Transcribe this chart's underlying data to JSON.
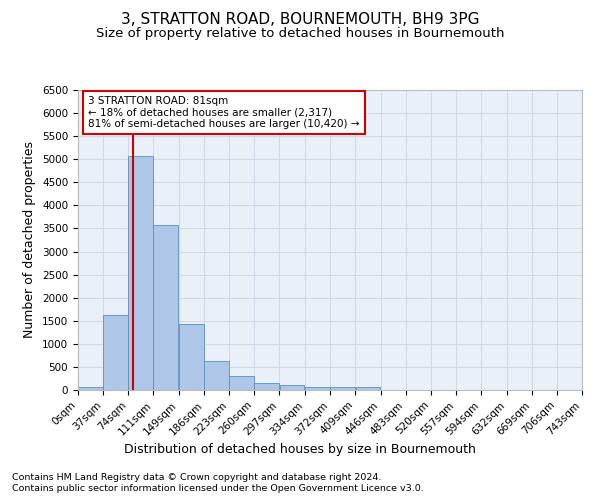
{
  "title": "3, STRATTON ROAD, BOURNEMOUTH, BH9 3PG",
  "subtitle": "Size of property relative to detached houses in Bournemouth",
  "xlabel": "Distribution of detached houses by size in Bournemouth",
  "ylabel": "Number of detached properties",
  "footnote1": "Contains HM Land Registry data © Crown copyright and database right 2024.",
  "footnote2": "Contains public sector information licensed under the Open Government Licence v3.0.",
  "bin_edges": [
    0,
    37,
    74,
    111,
    149,
    186,
    223,
    260,
    297,
    334,
    372,
    409,
    446,
    483,
    520,
    557,
    594,
    632,
    669,
    706,
    743
  ],
  "bar_heights": [
    75,
    1625,
    5075,
    3575,
    1425,
    625,
    300,
    150,
    100,
    75,
    75,
    75,
    0,
    0,
    0,
    0,
    0,
    0,
    0,
    0
  ],
  "bar_color": "#aec6e8",
  "bar_edge_color": "#5a8fc2",
  "property_x": 81,
  "property_label": "3 STRATTON ROAD: 81sqm",
  "annotation_line1": "← 18% of detached houses are smaller (2,317)",
  "annotation_line2": "81% of semi-detached houses are larger (10,420) →",
  "annotation_box_color": "#ffffff",
  "annotation_box_edge": "#cc0000",
  "vline_color": "#cc0000",
  "ylim": [
    0,
    6500
  ],
  "xlim": [
    0,
    743
  ],
  "grid_color": "#d0d8e8",
  "bg_color": "#eaf0f8",
  "title_fontsize": 11,
  "subtitle_fontsize": 9.5,
  "axis_label_fontsize": 9,
  "tick_fontsize": 7.5,
  "footnote_fontsize": 6.8,
  "annotation_fontsize": 7.5
}
